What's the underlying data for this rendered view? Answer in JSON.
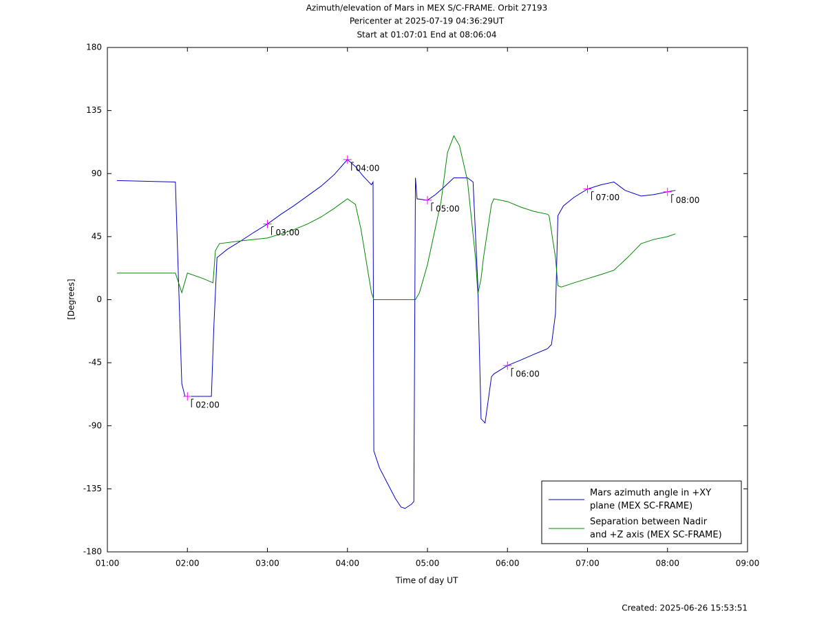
{
  "chart_data": {
    "type": "line",
    "title": [
      "Azimuth/elevation of Mars in MEX S/C-FRAME.  Orbit 27193",
      "Pericenter at 2025-07-19 04:36:29UT",
      "Start at 01:07:01 End at 08:06:04"
    ],
    "xlabel": "Time of day UT",
    "ylabel": "[Degrees]",
    "footer": "Created: 2025-06-26 15:53:51",
    "xlim": [
      1,
      9
    ],
    "xticks": [
      {
        "value": 1,
        "label": "01:00"
      },
      {
        "value": 2,
        "label": "02:00"
      },
      {
        "value": 3,
        "label": "03:00"
      },
      {
        "value": 4,
        "label": "04:00"
      },
      {
        "value": 5,
        "label": "05:00"
      },
      {
        "value": 6,
        "label": "06:00"
      },
      {
        "value": 7,
        "label": "07:00"
      },
      {
        "value": 8,
        "label": "08:00"
      },
      {
        "value": 9,
        "label": "09:00"
      }
    ],
    "ylim": [
      -180,
      180
    ],
    "yticks": [
      -180,
      -135,
      -90,
      -45,
      0,
      45,
      90,
      135,
      180
    ],
    "legend": "lower right",
    "series": [
      {
        "name": "Mars azimuth angle in +XY\nplane (MEX SC-FRAME)",
        "color": "#0000cc",
        "x": [
          1.12,
          1.85,
          1.93,
          1.97,
          2.0,
          2.3,
          2.33,
          2.37,
          2.5,
          2.67,
          2.83,
          3.0,
          3.17,
          3.33,
          3.5,
          3.67,
          3.83,
          4.0,
          4.1,
          4.2,
          4.3,
          4.32,
          4.33,
          4.4,
          4.5,
          4.6,
          4.67,
          4.72,
          4.8,
          4.83,
          4.85,
          4.87,
          5.0,
          5.1,
          5.2,
          5.33,
          5.5,
          5.57,
          5.63,
          5.67,
          5.72,
          5.8,
          5.83,
          6.0,
          6.17,
          6.33,
          6.5,
          6.55,
          6.6,
          6.63,
          6.7,
          6.83,
          7.0,
          7.17,
          7.33,
          7.47,
          7.67,
          7.83,
          8.0,
          8.1
        ],
        "values": [
          85,
          84,
          -60,
          -69,
          -69,
          -69,
          -20,
          30,
          36,
          42,
          48,
          54,
          61,
          67,
          74,
          81,
          89,
          100,
          95,
          88,
          82,
          84,
          -108,
          -120,
          -131,
          -142,
          -148,
          -149,
          -146,
          -144,
          87,
          72,
          71,
          75,
          80,
          87,
          87,
          84,
          10,
          -85,
          -88,
          -55,
          -53,
          -47,
          -43,
          -39,
          -35,
          -32,
          -10,
          60,
          67,
          73,
          79,
          82,
          84,
          78,
          74,
          75,
          77,
          78
        ]
      },
      {
        "name": "Separation between Nadir\nand +Z axis (MEX SC-FRAME)",
        "color": "#008800",
        "x": [
          1.12,
          1.85,
          1.93,
          2.0,
          2.2,
          2.32,
          2.35,
          2.4,
          2.67,
          2.83,
          3.0,
          3.17,
          3.33,
          3.5,
          3.67,
          3.83,
          4.0,
          4.1,
          4.17,
          4.3,
          4.33,
          4.6,
          4.85,
          4.9,
          5.0,
          5.17,
          5.25,
          5.33,
          5.4,
          5.5,
          5.6,
          5.63,
          5.67,
          5.7,
          5.8,
          5.83,
          6.0,
          6.17,
          6.33,
          6.5,
          6.52,
          6.6,
          6.63,
          6.67,
          6.83,
          7.0,
          7.17,
          7.33,
          7.5,
          7.67,
          7.83,
          8.0,
          8.1
        ],
        "values": [
          19,
          19,
          5,
          19,
          15,
          12,
          35,
          40,
          42,
          43,
          44,
          47,
          50,
          54,
          59,
          65,
          72,
          68,
          50,
          5,
          0,
          0,
          0,
          5,
          25,
          70,
          105,
          117,
          110,
          85,
          30,
          4,
          15,
          30,
          68,
          72,
          70,
          66,
          63,
          61,
          60,
          30,
          10,
          9,
          12,
          15,
          18,
          21,
          30,
          40,
          43,
          45,
          47
        ]
      }
    ],
    "annotations": [
      {
        "label": "02:00",
        "x": 2.0,
        "y": -69
      },
      {
        "label": "03:00",
        "x": 3.0,
        "y": 54
      },
      {
        "label": "04:00",
        "x": 4.0,
        "y": 100
      },
      {
        "label": "05:00",
        "x": 5.0,
        "y": 71
      },
      {
        "label": "06:00",
        "x": 6.0,
        "y": -47
      },
      {
        "label": "07:00",
        "x": 7.0,
        "y": 79
      },
      {
        "label": "08:00",
        "x": 8.0,
        "y": 77
      }
    ]
  }
}
